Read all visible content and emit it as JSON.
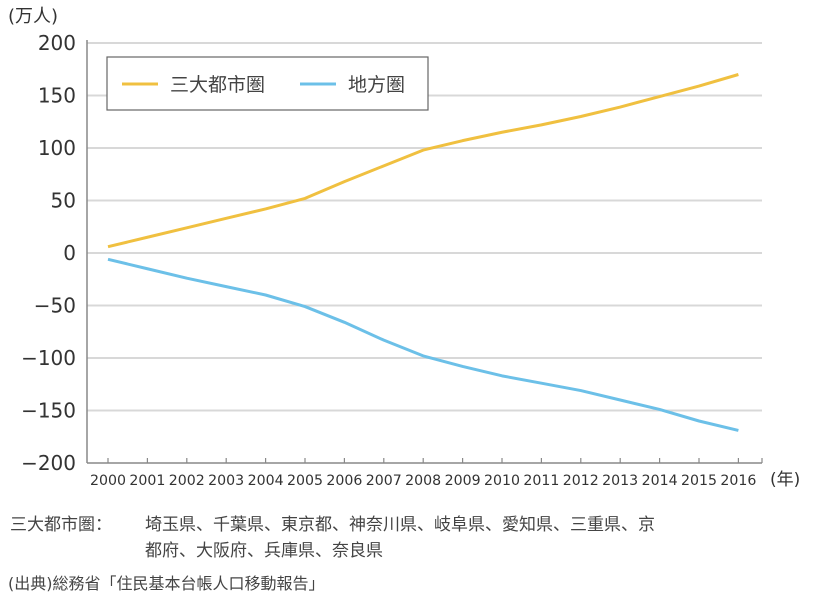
{
  "chart_data": {
    "type": "line",
    "y_unit_label": "(万人)",
    "x_unit_label": "(年)",
    "x": [
      2000,
      2001,
      2002,
      2003,
      2004,
      2005,
      2006,
      2007,
      2008,
      2009,
      2010,
      2011,
      2012,
      2013,
      2014,
      2015,
      2016
    ],
    "x_tick_labels": [
      "2000",
      "2001",
      "2002",
      "2003",
      "2004",
      "2005",
      "2006",
      "2007",
      "2008",
      "2009",
      "2010",
      "2011",
      "2012",
      "2013",
      "2014",
      "2015",
      "2016"
    ],
    "ylim": [
      -200,
      200
    ],
    "y_ticks": [
      200,
      150,
      100,
      50,
      0,
      -50,
      -100,
      -150,
      -200
    ],
    "y_tick_labels": [
      "200",
      "150",
      "100",
      "50",
      "0",
      "−50",
      "−100",
      "−150",
      "−200"
    ],
    "grid": true,
    "legend_position": "top-left",
    "series": [
      {
        "name": "三大都市圏",
        "color": "#f0c040",
        "values": [
          6,
          15,
          24,
          33,
          42,
          52,
          68,
          83,
          98,
          107,
          115,
          122,
          130,
          139,
          149,
          159,
          170
        ]
      },
      {
        "name": "地方圏",
        "color": "#6cc0e8",
        "values": [
          -6,
          -15,
          -24,
          -32,
          -40,
          -51,
          -66,
          -83,
          -98,
          -108,
          -117,
          -124,
          -131,
          -140,
          -149,
          -160,
          -169
        ]
      }
    ]
  },
  "notes": {
    "definition_label": "三大都市圏：",
    "definition_line1": "埼玉県、千葉県、東京都、神奈川県、岐阜県、愛知県、三重県、京",
    "definition_line2": "都府、大阪府、兵庫県、奈良県",
    "source": "(出典)総務省「住民基本台帳人口移動報告」"
  }
}
